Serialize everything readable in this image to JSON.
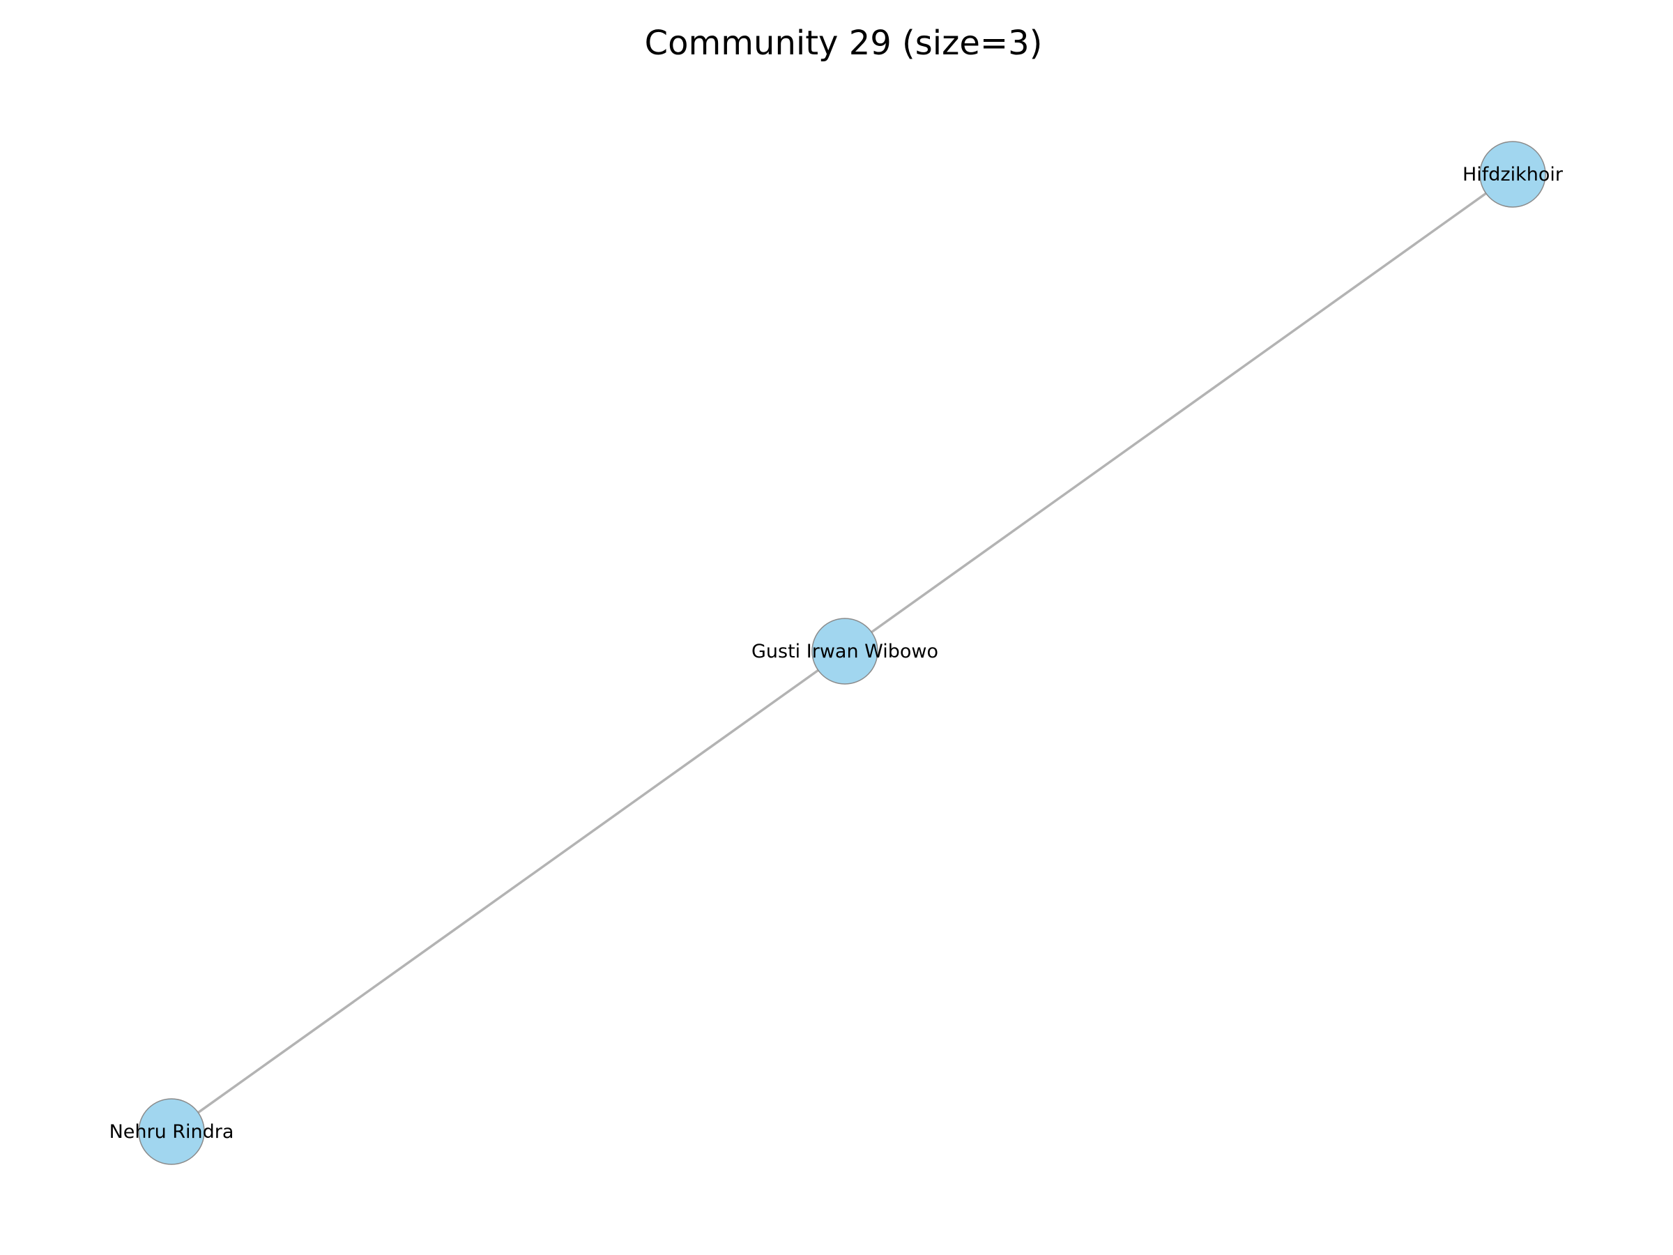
{
  "title": "Community 29 (size=3)",
  "colors": {
    "node_fill": "#a1d6ef",
    "node_stroke": "#8a8a8a",
    "edge": "#b3b3b3",
    "text": "#000000",
    "background": "#ffffff"
  },
  "graph": {
    "nodes": [
      {
        "id": "hifdzikhoir",
        "label": "Hifdzikhoir"
      },
      {
        "id": "gusti",
        "label": "Gusti Irwan Wibowo"
      },
      {
        "id": "nehru",
        "label": "Nehru Rindra"
      }
    ],
    "edges": [
      {
        "source": "hifdzikhoir",
        "target": "gusti"
      },
      {
        "source": "gusti",
        "target": "nehru"
      }
    ]
  }
}
